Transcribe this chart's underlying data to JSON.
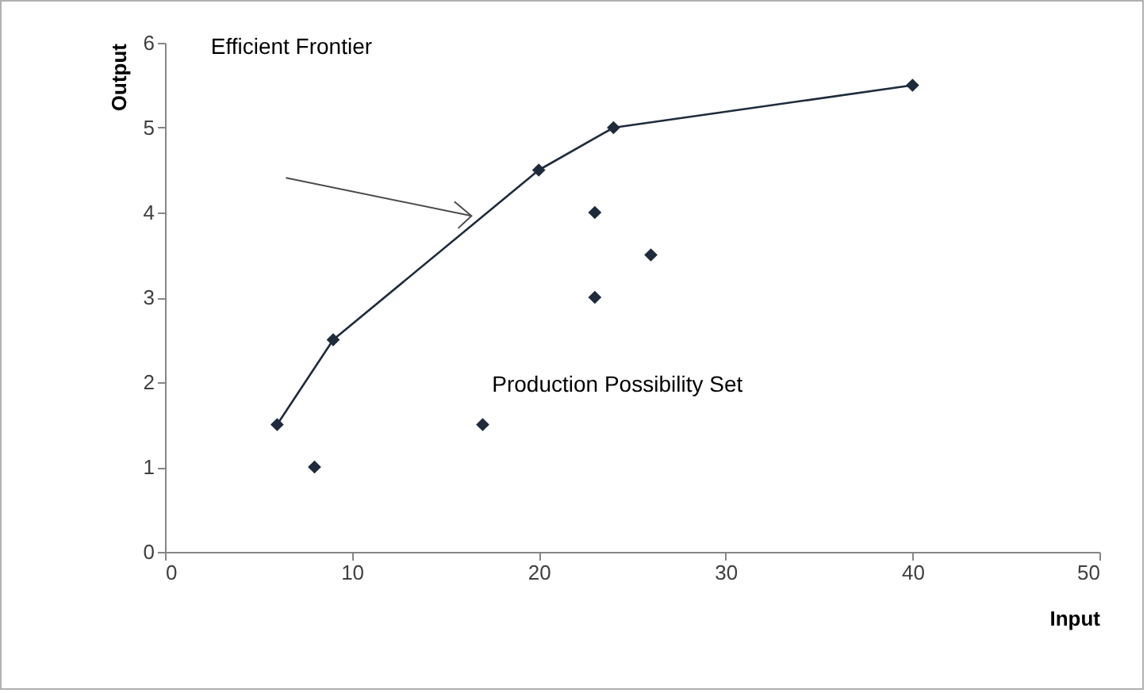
{
  "chart_data": {
    "type": "scatter",
    "xlabel": "Input",
    "ylabel": "Output",
    "xlim": [
      0,
      50
    ],
    "ylim": [
      0,
      6
    ],
    "xticks": [
      0,
      10,
      20,
      30,
      40,
      50
    ],
    "yticks": [
      0,
      1,
      2,
      3,
      4,
      5,
      6
    ],
    "grid": false,
    "marker": "diamond",
    "series": [
      {
        "type": "line",
        "color": "#1f2b3c",
        "x": [
          6,
          9,
          20,
          24,
          40
        ],
        "values": [
          1.5,
          2.5,
          4.5,
          5,
          5.5
        ]
      },
      {
        "color": "#1f2b3c",
        "x": [
          8,
          17,
          23,
          23,
          26
        ],
        "values": [
          1,
          1.5,
          3,
          4,
          3.5
        ]
      }
    ],
    "annotations": [
      "Efficient Frontier",
      "Production Possibility Set"
    ]
  }
}
